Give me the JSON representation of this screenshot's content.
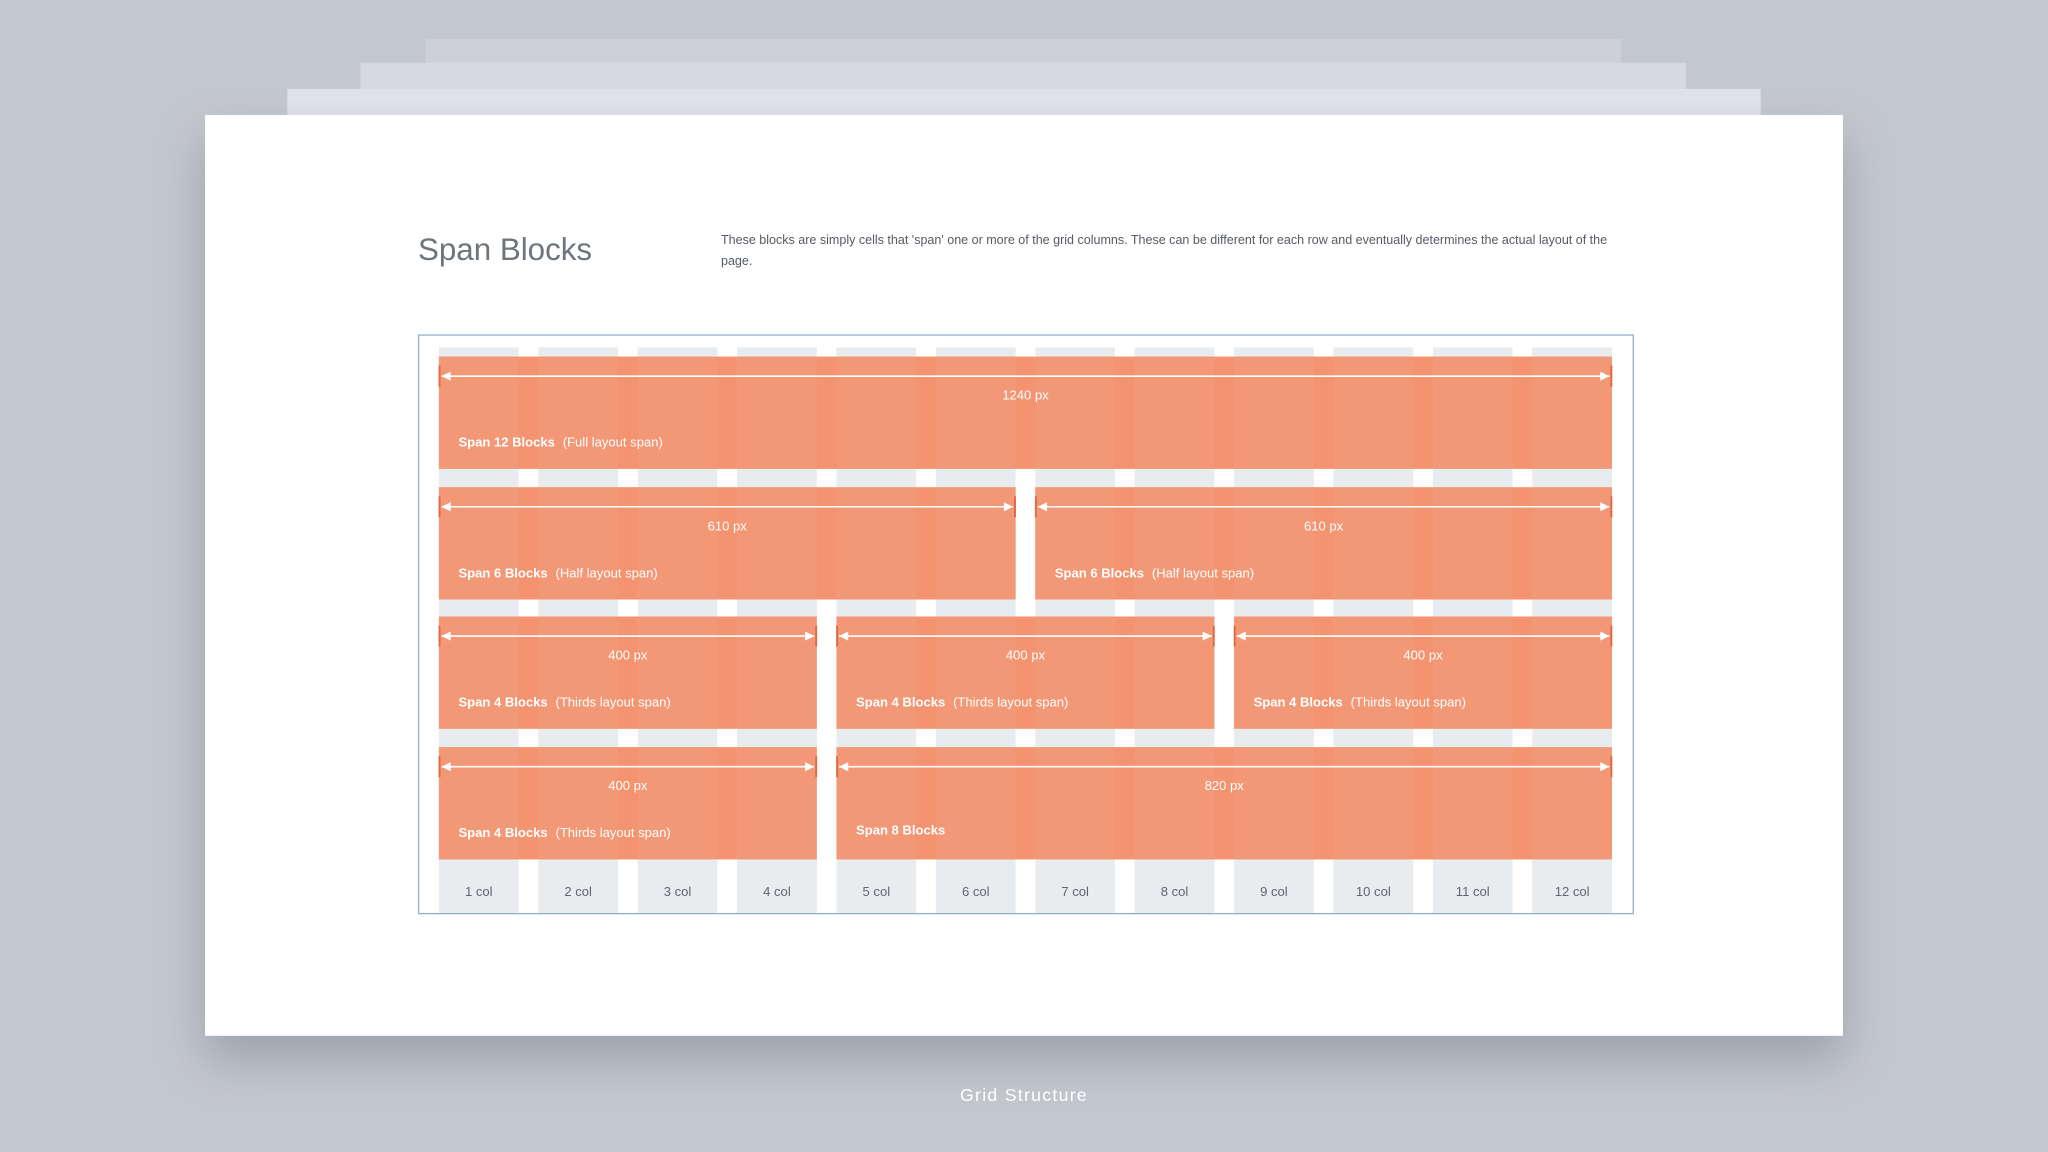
{
  "header": {
    "title": "Span Blocks",
    "description": "These blocks are simply cells that 'span' one or more of the grid columns. These can be different for each row and eventually determines the actual layout of the page."
  },
  "rows": [
    [
      {
        "width": "1240 px",
        "name": "Span 12 Blocks",
        "note": "(Full layout span)"
      }
    ],
    [
      {
        "width": "610 px",
        "name": "Span 6 Blocks",
        "note": "(Half layout span)"
      },
      {
        "width": "610 px",
        "name": "Span 6 Blocks",
        "note": "(Half layout span)"
      }
    ],
    [
      {
        "width": "400 px",
        "name": "Span 4 Blocks",
        "note": "(Thirds layout span)"
      },
      {
        "width": "400 px",
        "name": "Span 4 Blocks",
        "note": "(Thirds layout span)"
      },
      {
        "width": "400 px",
        "name": "Span 4 Blocks",
        "note": "(Thirds layout span)"
      }
    ],
    [
      {
        "width": "400 px",
        "name": "Span 4 Blocks",
        "note": "(Thirds layout span)"
      },
      {
        "width": "820 px",
        "name": "Span 8 Blocks"
      }
    ]
  ],
  "columns": [
    "1 col",
    "2 col",
    "3 col",
    "4 col",
    "5 col",
    "6 col",
    "7 col",
    "8 col",
    "9 col",
    "10 col",
    "11 col",
    "12 col"
  ],
  "caption": "Grid Structure"
}
